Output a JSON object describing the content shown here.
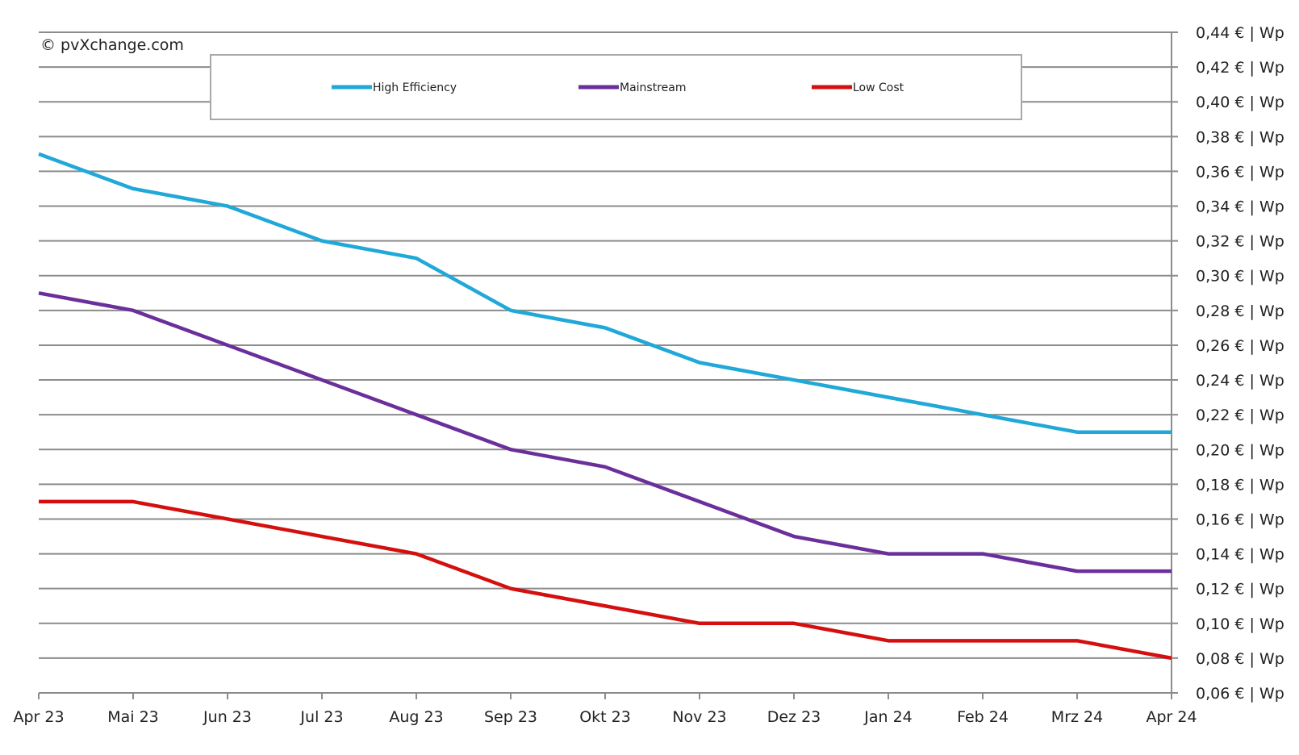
{
  "watermark": "© pvXchange.com",
  "chart_data": {
    "type": "line",
    "categories": [
      "Apr 23",
      "Mai 23",
      "Jun 23",
      "Jul 23",
      "Aug 23",
      "Sep 23",
      "Okt 23",
      "Nov 23",
      "Dez 23",
      "Jan 24",
      "Feb 24",
      "Mrz 24",
      "Apr 24"
    ],
    "series": [
      {
        "name": "High Efficiency",
        "color": "#1fa8d8",
        "values": [
          0.37,
          0.35,
          0.34,
          0.32,
          0.31,
          0.28,
          0.27,
          0.25,
          0.24,
          0.23,
          0.22,
          0.21,
          0.21
        ]
      },
      {
        "name": "Mainstream",
        "color": "#6a2f9a",
        "values": [
          0.29,
          0.28,
          0.26,
          0.24,
          0.22,
          0.2,
          0.19,
          0.17,
          0.15,
          0.14,
          0.14,
          0.13,
          0.13
        ]
      },
      {
        "name": "Low Cost",
        "color": "#d40f0f",
        "values": [
          0.17,
          0.17,
          0.16,
          0.15,
          0.14,
          0.12,
          0.11,
          0.1,
          0.1,
          0.09,
          0.09,
          0.09,
          0.08
        ]
      }
    ],
    "yticks": [
      "0,06 € | Wp",
      "0,08 € | Wp",
      "0,10 € | Wp",
      "0,12 € | Wp",
      "0,14 € | Wp",
      "0,16 € | Wp",
      "0,18 € | Wp",
      "0,20 € | Wp",
      "0,22 € | Wp",
      "0,24 € | Wp",
      "0,26 € | Wp",
      "0,28 € | Wp",
      "0,30 € | Wp",
      "0,32 € | Wp",
      "0,34 € | Wp",
      "0,36 € | Wp",
      "0,38 € | Wp",
      "0,40 € | Wp",
      "0,42 € | Wp",
      "0,44 € | Wp"
    ],
    "ylim": [
      0.06,
      0.44
    ],
    "y_axis_side": "right",
    "grid": true,
    "legend": "top",
    "title": "",
    "xlabel": "",
    "ylabel": ""
  }
}
